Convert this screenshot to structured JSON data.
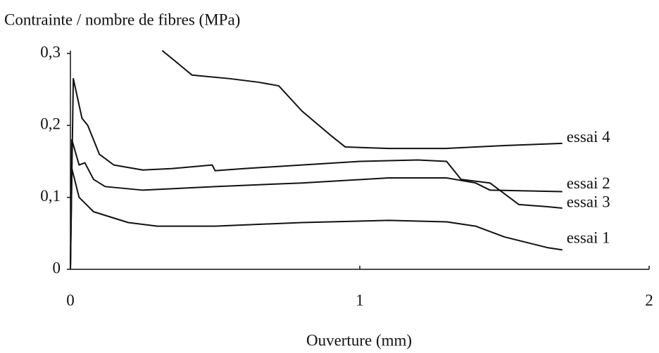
{
  "chart_data": {
    "type": "line",
    "title": "Contrainte / nombre de fibres (MPa)",
    "x_label": "Ouverture (mm)",
    "xlim": [
      0,
      2
    ],
    "xticks": [
      0,
      1,
      2
    ],
    "ylim": [
      0,
      0.3
    ],
    "yticks": [
      0,
      {
        "value": 0.1,
        "label": "0,1"
      },
      {
        "value": 0.2,
        "label": "0,2"
      },
      {
        "value": 0.3,
        "label": "0,3"
      }
    ],
    "grid": false,
    "series": [
      {
        "name": "essai 1",
        "color": "#111111",
        "x": [
          0,
          0.005,
          0.03,
          0.08,
          0.2,
          0.3,
          0.5,
          0.8,
          1.1,
          1.3,
          1.4,
          1.5,
          1.6,
          1.65,
          1.7
        ],
        "values": [
          0,
          0.14,
          0.1,
          0.08,
          0.065,
          0.06,
          0.06,
          0.065,
          0.068,
          0.066,
          0.06,
          0.045,
          0.035,
          0.03,
          0.027
        ]
      },
      {
        "name": "essai 2",
        "color": "#111111",
        "x": [
          0,
          0.005,
          0.03,
          0.05,
          0.08,
          0.12,
          0.25,
          0.5,
          0.8,
          1.1,
          1.3,
          1.4,
          1.45,
          1.7
        ],
        "values": [
          0,
          0.18,
          0.145,
          0.148,
          0.125,
          0.115,
          0.11,
          0.115,
          0.12,
          0.127,
          0.127,
          0.12,
          0.11,
          0.108
        ]
      },
      {
        "name": "essai 3",
        "color": "#111111",
        "x": [
          0,
          0.01,
          0.04,
          0.06,
          0.1,
          0.15,
          0.25,
          0.35,
          0.49,
          0.5,
          0.6,
          0.8,
          1.0,
          1.2,
          1.3,
          1.35,
          1.45,
          1.5,
          1.55,
          1.65,
          1.7
        ],
        "values": [
          0,
          0.265,
          0.21,
          0.2,
          0.16,
          0.145,
          0.138,
          0.14,
          0.145,
          0.137,
          0.14,
          0.145,
          0.15,
          0.152,
          0.15,
          0.125,
          0.12,
          0.105,
          0.09,
          0.087,
          0.085
        ]
      },
      {
        "name": "essai 4",
        "color": "#111111",
        "x": [
          0.317,
          0.36,
          0.42,
          0.55,
          0.65,
          0.72,
          0.8,
          0.9,
          0.95,
          1.1,
          1.3,
          1.5,
          1.7
        ],
        "values": [
          0.304,
          0.29,
          0.27,
          0.265,
          0.26,
          0.255,
          0.22,
          0.186,
          0.17,
          0.168,
          0.168,
          0.172,
          0.175
        ]
      }
    ]
  }
}
